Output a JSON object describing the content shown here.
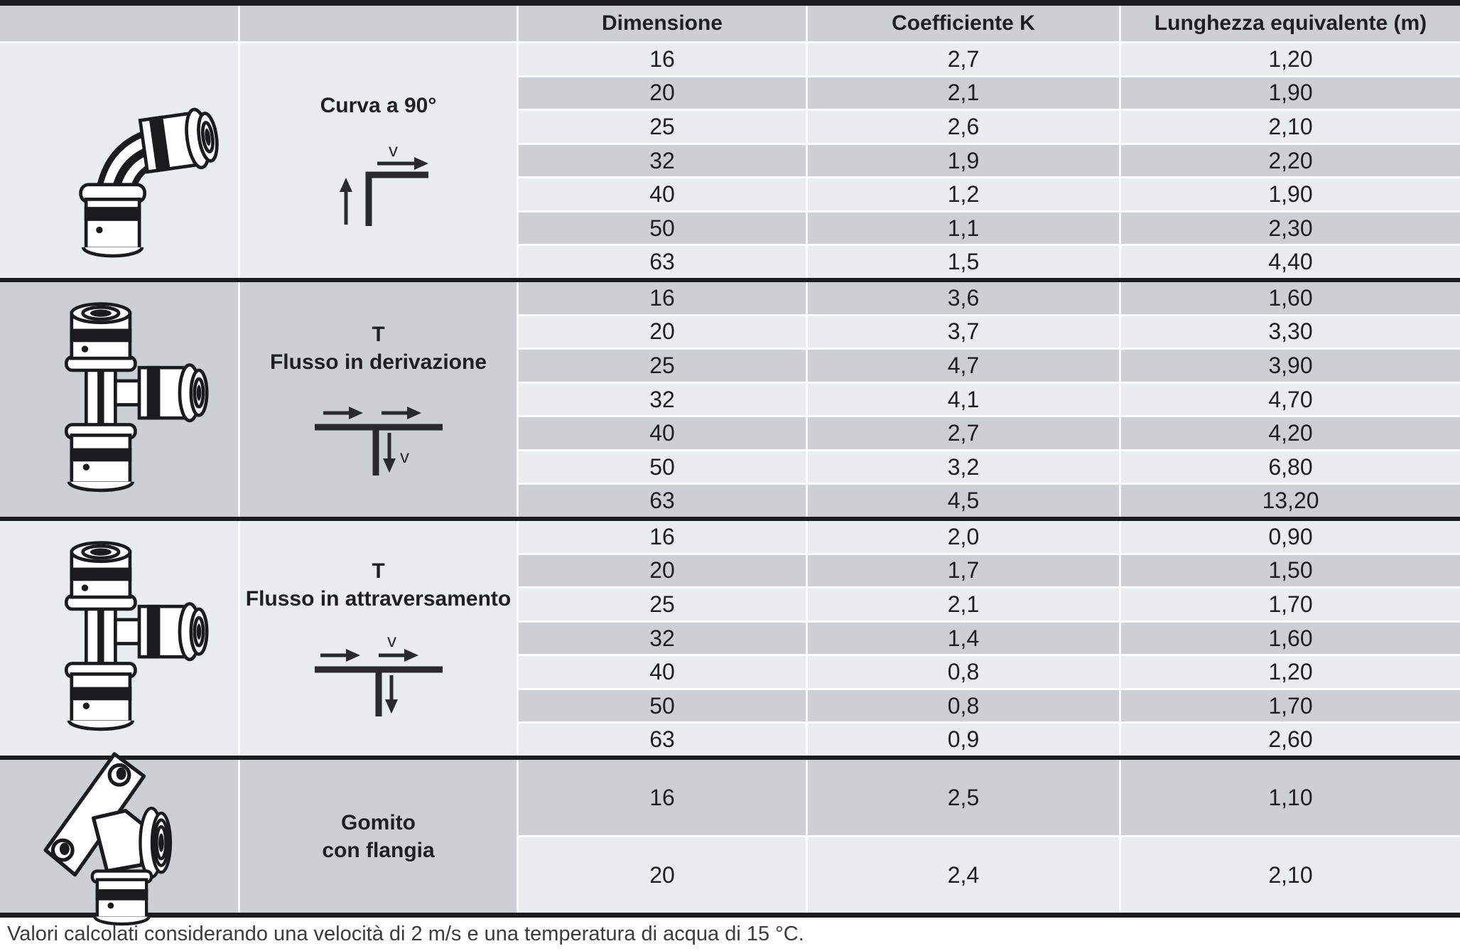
{
  "table": {
    "headers": [
      "Dimensione",
      "Coefficiente K",
      "Lunghezza equivalente (m)"
    ],
    "velocity_label": "v",
    "sections": [
      {
        "label_lines": [
          "Curva a 90°"
        ],
        "image": "press-elbow-90-illustration",
        "diagram": "elbow-up-right-flow-icon",
        "rows": [
          [
            "16",
            "2,7",
            "1,20"
          ],
          [
            "20",
            "2,1",
            "1,90"
          ],
          [
            "25",
            "2,6",
            "2,10"
          ],
          [
            "32",
            "1,9",
            "2,20"
          ],
          [
            "40",
            "1,2",
            "1,90"
          ],
          [
            "50",
            "1,1",
            "2,30"
          ],
          [
            "63",
            "1,5",
            "4,40"
          ]
        ]
      },
      {
        "label_lines": [
          "T",
          "Flusso in derivazione"
        ],
        "image": "press-tee-illustration",
        "diagram": "tee-branch-flow-icon",
        "rows": [
          [
            "16",
            "3,6",
            "1,60"
          ],
          [
            "20",
            "3,7",
            "3,30"
          ],
          [
            "25",
            "4,7",
            "3,90"
          ],
          [
            "32",
            "4,1",
            "4,70"
          ],
          [
            "40",
            "2,7",
            "4,20"
          ],
          [
            "50",
            "3,2",
            "6,80"
          ],
          [
            "63",
            "4,5",
            "13,20"
          ]
        ]
      },
      {
        "label_lines": [
          "T",
          "Flusso in attraversamento"
        ],
        "image": "press-tee-illustration-2",
        "diagram": "tee-through-flow-icon",
        "rows": [
          [
            "16",
            "2,0",
            "0,90"
          ],
          [
            "20",
            "1,7",
            "1,50"
          ],
          [
            "25",
            "2,1",
            "1,70"
          ],
          [
            "32",
            "1,4",
            "1,60"
          ],
          [
            "40",
            "0,8",
            "1,20"
          ],
          [
            "50",
            "0,8",
            "1,70"
          ],
          [
            "63",
            "0,9",
            "2,60"
          ]
        ]
      },
      {
        "label_lines": [
          "Gomito",
          "con flangia"
        ],
        "image": "flanged-elbow-illustration",
        "diagram": null,
        "rows": [
          [
            "16",
            "2,5",
            "1,10"
          ],
          [
            "20",
            "2,4",
            "2,10"
          ]
        ]
      }
    ]
  },
  "footnote": "Valori calcolati considerando una velocità di 2 m/s e una temperatura di acqua di 15 °C.",
  "colors": {
    "row_light": "#e9edee",
    "row_dark": "#ccd0d3",
    "header_bg": "#ccd0d3",
    "divider": "#1d1d1f"
  }
}
